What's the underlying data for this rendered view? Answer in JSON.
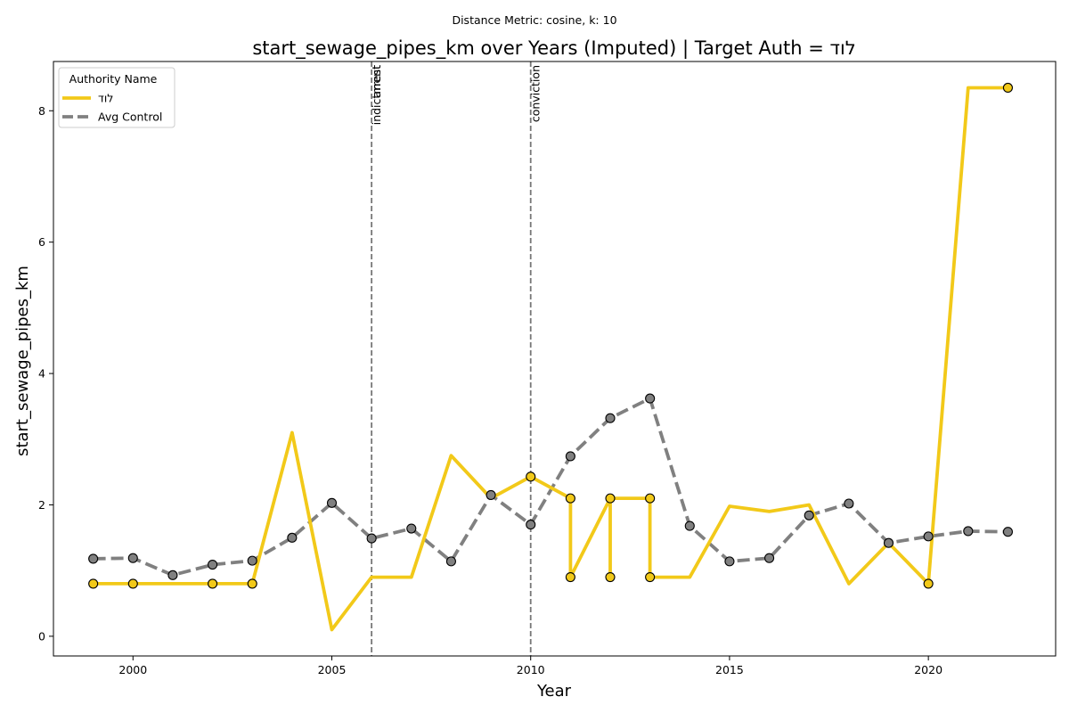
{
  "chart_data": {
    "type": "line",
    "subtitle": "Distance Metric: cosine, k: 10",
    "title": "start_sewage_pipes_km over Years (Imputed) | Target Auth = לוד",
    "xlabel": "Year",
    "ylabel": "start_sewage_pipes_km",
    "xlim": [
      1998,
      2023.2
    ],
    "ylim": [
      -0.3,
      8.75
    ],
    "xticks": [
      2000,
      2005,
      2010,
      2015,
      2020
    ],
    "yticks": [
      0,
      2,
      4,
      6,
      8
    ],
    "grid": false,
    "legend": {
      "title": "Authority Name",
      "placement": "top-left",
      "entries": [
        "לוד",
        "Avg Control"
      ]
    },
    "colors": {
      "target": "#F2C919",
      "control": "#808080"
    },
    "events": [
      {
        "x": 2006,
        "labels": [
          "indictment",
          "arrest"
        ]
      },
      {
        "x": 2010,
        "labels": [
          "conviction"
        ]
      }
    ],
    "series": [
      {
        "name": "לוד",
        "style": "solid",
        "line": [
          [
            1999,
            0.8
          ],
          [
            2000,
            0.8
          ],
          [
            2001,
            0.8
          ],
          [
            2002,
            0.8
          ],
          [
            2003,
            0.8
          ],
          [
            2004,
            3.1
          ],
          [
            2005,
            0.1
          ],
          [
            2006,
            0.9
          ],
          [
            2007,
            0.9
          ],
          [
            2008,
            2.75
          ],
          [
            2009,
            2.1
          ],
          [
            2010,
            2.43
          ],
          [
            2011,
            2.1
          ],
          [
            2011,
            0.9
          ],
          [
            2012,
            2.1
          ],
          [
            2012,
            0.9
          ],
          [
            2012,
            2.1
          ],
          [
            2013,
            2.1
          ],
          [
            2013,
            0.9
          ],
          [
            2014,
            0.9
          ],
          [
            2015,
            1.98
          ],
          [
            2016,
            1.9
          ],
          [
            2017,
            2.0
          ],
          [
            2018,
            0.8
          ],
          [
            2019,
            1.42
          ],
          [
            2020,
            0.8
          ],
          [
            2021,
            8.35
          ],
          [
            2022,
            8.35
          ]
        ],
        "markers": [
          [
            1999,
            0.8
          ],
          [
            2000,
            0.8
          ],
          [
            2002,
            0.8
          ],
          [
            2003,
            0.8
          ],
          [
            2010,
            2.43
          ],
          [
            2011,
            2.1
          ],
          [
            2011,
            0.9
          ],
          [
            2012,
            2.1
          ],
          [
            2012,
            0.9
          ],
          [
            2013,
            2.1
          ],
          [
            2013,
            0.9
          ],
          [
            2020,
            0.8
          ],
          [
            2022,
            8.35
          ]
        ]
      },
      {
        "name": "Avg Control",
        "style": "dashed",
        "line": [
          [
            1999,
            1.18
          ],
          [
            2000,
            1.19
          ],
          [
            2001,
            0.93
          ],
          [
            2002,
            1.09
          ],
          [
            2003,
            1.15
          ],
          [
            2004,
            1.5
          ],
          [
            2005,
            2.03
          ],
          [
            2006,
            1.49
          ],
          [
            2007,
            1.64
          ],
          [
            2008,
            1.14
          ],
          [
            2009,
            2.15
          ],
          [
            2010,
            1.7
          ],
          [
            2011,
            2.74
          ],
          [
            2012,
            3.32
          ],
          [
            2013,
            3.62
          ],
          [
            2014,
            1.68
          ],
          [
            2015,
            1.14
          ],
          [
            2016,
            1.19
          ],
          [
            2017,
            1.84
          ],
          [
            2018,
            2.02
          ],
          [
            2019,
            1.42
          ],
          [
            2020,
            1.52
          ],
          [
            2021,
            1.6
          ],
          [
            2022,
            1.59
          ]
        ],
        "markers": [
          [
            1999,
            1.18
          ],
          [
            2000,
            1.19
          ],
          [
            2001,
            0.93
          ],
          [
            2002,
            1.09
          ],
          [
            2003,
            1.15
          ],
          [
            2004,
            1.5
          ],
          [
            2005,
            2.03
          ],
          [
            2006,
            1.49
          ],
          [
            2007,
            1.64
          ],
          [
            2008,
            1.14
          ],
          [
            2009,
            2.15
          ],
          [
            2010,
            1.7
          ],
          [
            2011,
            2.74
          ],
          [
            2012,
            3.32
          ],
          [
            2013,
            3.62
          ],
          [
            2014,
            1.68
          ],
          [
            2015,
            1.14
          ],
          [
            2016,
            1.19
          ],
          [
            2017,
            1.84
          ],
          [
            2018,
            2.02
          ],
          [
            2019,
            1.42
          ],
          [
            2020,
            1.52
          ],
          [
            2021,
            1.6
          ],
          [
            2022,
            1.59
          ]
        ]
      }
    ]
  }
}
